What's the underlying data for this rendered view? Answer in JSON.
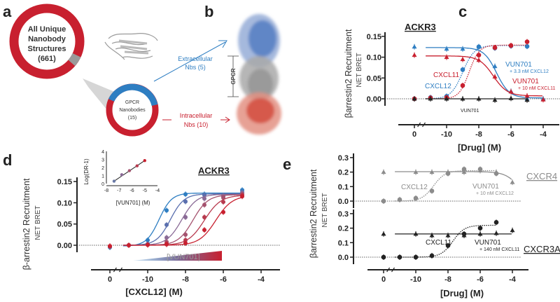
{
  "panels": {
    "a": "a",
    "b": "b",
    "c": "c",
    "d": "d",
    "e": "e"
  },
  "panel_a": {
    "big_ring": [
      "All Unique",
      "Nanobody",
      "Structures",
      "(661)"
    ],
    "small_ring": [
      "GPCR",
      "Nanobodies",
      "(15)"
    ],
    "extracellular": [
      "Extracellular",
      "Nbs (5)"
    ],
    "intracellular": [
      "Intracellular",
      "Nbs (10)"
    ],
    "total": 661,
    "gpcr": 15,
    "extracellular_count": 5,
    "intracellular_count": 10
  },
  "panel_b": {
    "gpcr_label": "GPCR"
  },
  "colors": {
    "red": "#c8202f",
    "blue": "#2e7ec2",
    "gray": "#8c8c8c",
    "black": "#222222"
  },
  "chart_data": [
    {
      "id": "c",
      "type": "line",
      "title": "ACKR3",
      "ylabel": "βarrestin2 Recruitment",
      "ysublabel": "NET BRET",
      "xlabel": "[Drug] (M)",
      "xticks": [
        "0",
        "-10",
        "-8",
        "-6",
        "-4"
      ],
      "xtick_values": [
        0,
        -10,
        -8,
        -6,
        -4
      ],
      "yticks": [
        "0.00",
        "0.05",
        "0.10",
        "0.15"
      ],
      "ytick_values": [
        0,
        0.05,
        0.1,
        0.15
      ],
      "ylim": [
        -0.02,
        0.17
      ],
      "series": [
        {
          "name": "CXCL12",
          "color": "blue",
          "marker": "circle",
          "line": "dotted",
          "x": [
            0,
            -11,
            -10,
            -9,
            -8,
            -7,
            -6,
            -5
          ],
          "y": [
            0,
            0.003,
            0.006,
            0.07,
            0.125,
            0.122,
            0.127,
            0.126
          ],
          "fit": {
            "bottom": 0,
            "top": 0.128,
            "ec50": -9.0,
            "hill": 1.2
          }
        },
        {
          "name": "CXCL11",
          "color": "red",
          "marker": "circle",
          "line": "dotted",
          "x": [
            0,
            -11,
            -10,
            -9,
            -8,
            -7,
            -6,
            -5
          ],
          "y": [
            0,
            0.002,
            0.003,
            0.032,
            0.105,
            0.123,
            0.128,
            0.137
          ],
          "fit": {
            "bottom": 0,
            "top": 0.129,
            "ec50": -8.6,
            "hill": 1.4
          }
        },
        {
          "name": "VUN701 + 3.3 nM CXCL12",
          "color": "blue",
          "marker": "triangle",
          "line": "solid",
          "x": [
            0,
            -10,
            -9,
            -8,
            -7,
            -6,
            -5,
            -4
          ],
          "y": [
            0.125,
            0.12,
            0.12,
            0.125,
            0.078,
            0.018,
            0.0,
            0.0
          ],
          "fit": {
            "bottom": 0.002,
            "top": 0.123,
            "ec50": -6.9,
            "hill": -1.1
          }
        },
        {
          "name": "VUN701 + 10 nM CXCL11",
          "color": "red",
          "marker": "triangle",
          "line": "solid",
          "x": [
            0,
            -10,
            -9,
            -8,
            -7,
            -6,
            -5,
            -4
          ],
          "y": [
            0.105,
            0.1,
            0.095,
            0.093,
            0.053,
            0.017,
            0.007,
            -0.002
          ],
          "fit": {
            "bottom": 0.007,
            "top": 0.103,
            "ec50": -7.1,
            "hill": -1.0
          }
        },
        {
          "name": "VUN701",
          "color": "black",
          "marker": "triangle",
          "line": "solid",
          "x": [
            0,
            -11,
            -10,
            -9,
            -8,
            -7,
            -6,
            -5
          ],
          "y": [
            0,
            0,
            0,
            0,
            0,
            -0.003,
            0.001,
            -0.003
          ],
          "fit": {
            "bottom": 0,
            "top": 0,
            "ec50": -8,
            "hill": 1
          }
        }
      ],
      "annotations": [
        {
          "text": "CXCL11",
          "color": "red"
        },
        {
          "text": "CXCL12",
          "color": "blue"
        },
        {
          "text": "VUN701",
          "sub": "+ 3.3 nM CXCL12",
          "color": "blue"
        },
        {
          "text": "VUN701",
          "sub": "+ 10 nM CXCL11",
          "color": "red"
        },
        {
          "text": "VUN701",
          "color": "black"
        }
      ]
    },
    {
      "id": "d",
      "type": "line",
      "title": "ACKR3",
      "ylabel": "β-arrestin2 Recruitment",
      "ysublabel": "NET BRET",
      "xlabel": "[CXCL12] (M)",
      "gradient_label": "[VUN701]",
      "xticks": [
        "0",
        "-10",
        "-8",
        "-6",
        "-4"
      ],
      "xtick_values": [
        0,
        -10,
        -8,
        -6,
        -4
      ],
      "yticks": [
        "0.00",
        "0.05",
        "0.10",
        "0.15"
      ],
      "ytick_values": [
        0,
        0.05,
        0.1,
        0.15
      ],
      "ylim": [
        -0.02,
        0.17
      ],
      "series": [
        {
          "name": "0 VUN701",
          "color": "#2e7ec2",
          "x": [
            0,
            -11,
            -10,
            -9,
            -8,
            -7,
            -6,
            -5
          ],
          "y": [
            -0.005,
            0,
            0.012,
            0.082,
            0.12,
            0.12,
            0.115,
            0.13
          ],
          "fit": {
            "bottom": -0.002,
            "top": 0.123,
            "ec50": -9.4,
            "hill": 1.3
          }
        },
        {
          "name": "VUN701 1",
          "color": "#5a6fae",
          "x": [
            0,
            -11,
            -10,
            -9,
            -8,
            -7,
            -6,
            -5
          ],
          "y": [
            -0.004,
            0,
            0.003,
            0.048,
            0.103,
            0.118,
            0.117,
            0.125
          ],
          "fit": {
            "bottom": 0,
            "top": 0.121,
            "ec50": -8.8,
            "hill": 1.2
          }
        },
        {
          "name": "VUN701 2",
          "color": "#8a6a96",
          "x": [
            0,
            -11,
            -10,
            -9,
            -8,
            -7,
            -6,
            -5
          ],
          "y": [
            -0.003,
            0,
            0.002,
            0.018,
            0.066,
            0.11,
            0.116,
            0.123
          ],
          "fit": {
            "bottom": 0,
            "top": 0.12,
            "ec50": -8.2,
            "hill": 1.1
          }
        },
        {
          "name": "VUN701 3",
          "color": "#a5536f",
          "x": [
            0,
            -11,
            -10,
            -9,
            -8,
            -7,
            -6,
            -5
          ],
          "y": [
            -0.003,
            0,
            0.001,
            0.008,
            0.025,
            0.095,
            0.112,
            0.12
          ],
          "fit": {
            "bottom": 0,
            "top": 0.119,
            "ec50": -7.6,
            "hill": 1.1
          }
        },
        {
          "name": "VUN701 4",
          "color": "#b83a4e",
          "x": [
            0,
            -11,
            -10,
            -9,
            -8,
            -7,
            -6,
            -5
          ],
          "y": [
            -0.002,
            0,
            0.001,
            0.004,
            0.012,
            0.066,
            0.102,
            0.118
          ],
          "fit": {
            "bottom": 0,
            "top": 0.118,
            "ec50": -7.0,
            "hill": 1.0
          }
        },
        {
          "name": "VUN701 5",
          "color": "#c8202f",
          "x": [
            0,
            -11,
            -10,
            -9,
            -8,
            -7,
            -6,
            -5
          ],
          "y": [
            -0.002,
            0,
            0.001,
            0.002,
            0.005,
            0.036,
            0.078,
            0.115
          ],
          "fit": {
            "bottom": 0,
            "top": 0.117,
            "ec50": -6.4,
            "hill": 1.0
          }
        }
      ],
      "inset": {
        "ylabel": "Log(DR-1)",
        "xlabel": "[VUN701] (M)",
        "xticks": [
          "-8",
          "-7",
          "-6",
          "-5",
          "-4"
        ],
        "yticks": [
          "0",
          "1",
          "2",
          "3",
          "4"
        ],
        "x": [
          -7.4,
          -6.8,
          -6.2,
          -5.6,
          -5.0
        ],
        "y": [
          0.3,
          1.1,
          1.6,
          2.2,
          2.85
        ],
        "xlim": [
          -8,
          -4
        ],
        "ylim": [
          0,
          4
        ]
      }
    },
    {
      "id": "e",
      "type": "line",
      "ylabel": "βarrestin2 Recruitment",
      "ysublabel": "NET BRET",
      "xlabel": "[Drug] (M)",
      "xticks": [
        "0",
        "-10",
        "-8",
        "-6",
        "-4"
      ],
      "xtick_values": [
        0,
        -10,
        -8,
        -6,
        -4
      ],
      "yticks": [
        "0.0",
        "0.1",
        "0.2",
        "0.3"
      ],
      "ytick_values": [
        0,
        0.1,
        0.2,
        0.3
      ],
      "subplots": [
        {
          "title": "CXCR4",
          "series": [
            {
              "name": "CXCL12",
              "color": "#8c8c8c",
              "marker": "circle",
              "line": "dotted",
              "x": [
                0,
                -11,
                -10,
                -9,
                -8,
                -7,
                -6,
                -5
              ],
              "y": [
                0,
                0.01,
                0.02,
                0.07,
                0.19,
                0.22,
                0.22,
                0.19
              ],
              "fit": {
                "bottom": 0,
                "top": 0.21,
                "ec50": -8.9,
                "hill": 1.2
              }
            },
            {
              "name": "VUN701 + 10 nM CXCL12",
              "color": "#8c8c8c",
              "marker": "triangle",
              "line": "solid",
              "x": [
                0,
                -10,
                -9,
                -8,
                -7,
                -6,
                -5,
                -4
              ],
              "y": [
                0.2,
                0.2,
                0.2,
                0.2,
                0.2,
                0.21,
                0.2,
                0.13
              ],
              "fit": {
                "bottom": 0.0,
                "top": 0.203,
                "ec50": -3.6,
                "hill": -1.0
              }
            }
          ],
          "annotations": [
            {
              "text": "CXCL12"
            },
            {
              "text": "VUN701",
              "sub": "+ 10 nM CXCL12"
            }
          ]
        },
        {
          "title": "CXCR3A",
          "series": [
            {
              "name": "CXCL11",
              "color": "#222222",
              "marker": "circle",
              "line": "dotted",
              "x": [
                0,
                -11,
                -10,
                -9,
                -8,
                -7,
                -6,
                -5
              ],
              "y": [
                0,
                0,
                0,
                0.01,
                0.08,
                0.16,
                0.2,
                0.24
              ],
              "fit": {
                "bottom": 0,
                "top": 0.22,
                "ec50": -7.7,
                "hill": 1.2
              }
            },
            {
              "name": "VUN701 + 140 nM CXCL11",
              "color": "#222222",
              "marker": "triangle",
              "line": "solid",
              "x": [
                0,
                -10,
                -9,
                -8,
                -7,
                -6,
                -5,
                -4
              ],
              "y": [
                0.16,
                0.16,
                0.15,
                0.15,
                0.15,
                0.16,
                0.165,
                0.185
              ],
              "fit": {
                "bottom": 0.16,
                "top": 0.16,
                "ec50": -8,
                "hill": 1
              }
            }
          ],
          "annotations": [
            {
              "text": "CXCL11"
            },
            {
              "text": "VUN701",
              "sub": "+ 140 nM CXCL11"
            }
          ]
        }
      ]
    }
  ]
}
